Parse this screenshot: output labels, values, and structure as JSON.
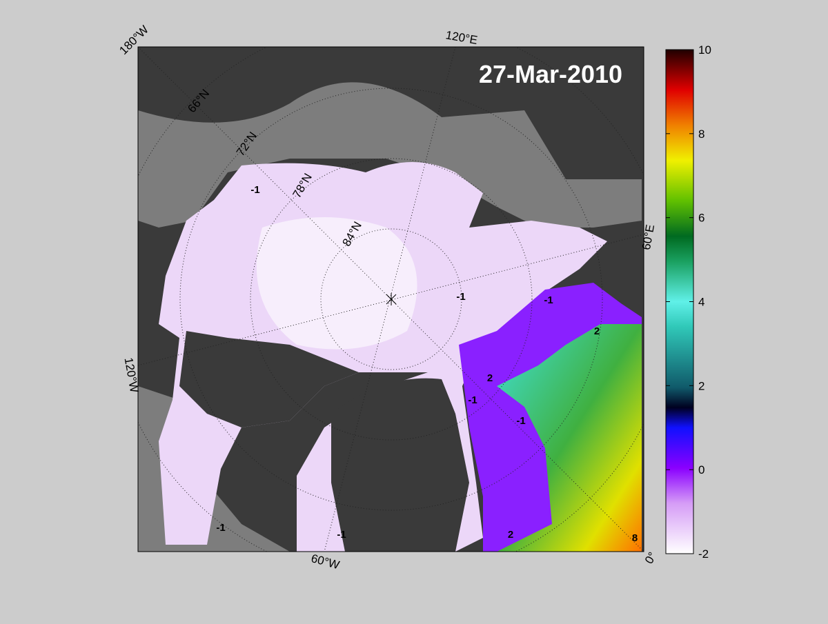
{
  "title": "27-Mar-2010",
  "map": {
    "lon_labels": [
      "180°W",
      "120°E",
      "60°E",
      "0°",
      "60°W",
      "120°W"
    ],
    "lat_labels": [
      "66°N",
      "72°N",
      "78°N",
      "84°N"
    ],
    "contour_labels": [
      "-1",
      "-1",
      "-1",
      "2",
      "-1",
      "-1",
      "2",
      "2",
      "8",
      "-1",
      "-1"
    ]
  },
  "colorbar": {
    "lim": [
      -2,
      10
    ],
    "ticks": [
      -2,
      0,
      2,
      4,
      6,
      8,
      10
    ]
  }
}
